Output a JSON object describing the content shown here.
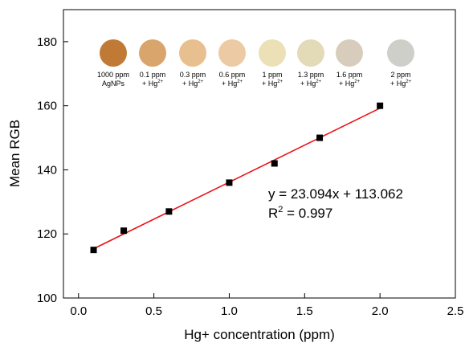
{
  "chart_data": {
    "type": "scatter",
    "x_label": "Hg+ concentration (ppm)",
    "y_label": "Mean RGB",
    "x": [
      0.1,
      0.3,
      0.6,
      1.0,
      1.3,
      1.6,
      2.0
    ],
    "series": [
      {
        "color": "#000000",
        "values": [
          115,
          121,
          127,
          136,
          142,
          150,
          160
        ]
      }
    ],
    "fit": {
      "slope": 23.094,
      "intercept": 113.062,
      "x_range": [
        0.1,
        2.0
      ],
      "color": "#e8141a",
      "equation": "y = 23.094x + 113.062",
      "r2": {
        "prefix": "R",
        "sup": "2",
        "text": " = 0.997"
      }
    },
    "xlim": [
      -0.1,
      2.5
    ],
    "xticks": [
      {
        "value": 0,
        "label": "0.0"
      },
      0.5,
      {
        "value": 1,
        "label": "1.0"
      },
      1.5,
      {
        "value": 2,
        "label": "2.0"
      },
      2.5
    ],
    "ylim": [
      100,
      190
    ],
    "yticks": [
      100,
      120,
      140,
      160,
      180
    ],
    "swatches": [
      {
        "color": "#c07a35",
        "line1": "1000 ppm",
        "line2": "AgNPs",
        "sup": null
      },
      {
        "color": "#d9a56c",
        "line1": "0.1 ppm",
        "line2": "+ Hg",
        "sup": "2+"
      },
      {
        "color": "#e8c08f",
        "line1": "0.3 ppm",
        "line2": "+ Hg",
        "sup": "2+"
      },
      {
        "color": "#eccaa3",
        "line1": "0.6 ppm",
        "line2": "+ Hg",
        "sup": "2+"
      },
      {
        "color": "#ece0b7",
        "line1": "1 ppm",
        "line2": "+ Hg",
        "sup": "2+"
      },
      {
        "color": "#e3dab8",
        "line1": "1.3 ppm",
        "line2": "+ Hg",
        "sup": "2+"
      },
      {
        "color": "#d8cdbd",
        "line1": "1.6 ppm",
        "line2": "+ Hg",
        "sup": "2+"
      },
      {
        "color": "#cfcfca",
        "line1": "2 ppm",
        "line2": "+ Hg",
        "sup": "2+"
      }
    ]
  }
}
